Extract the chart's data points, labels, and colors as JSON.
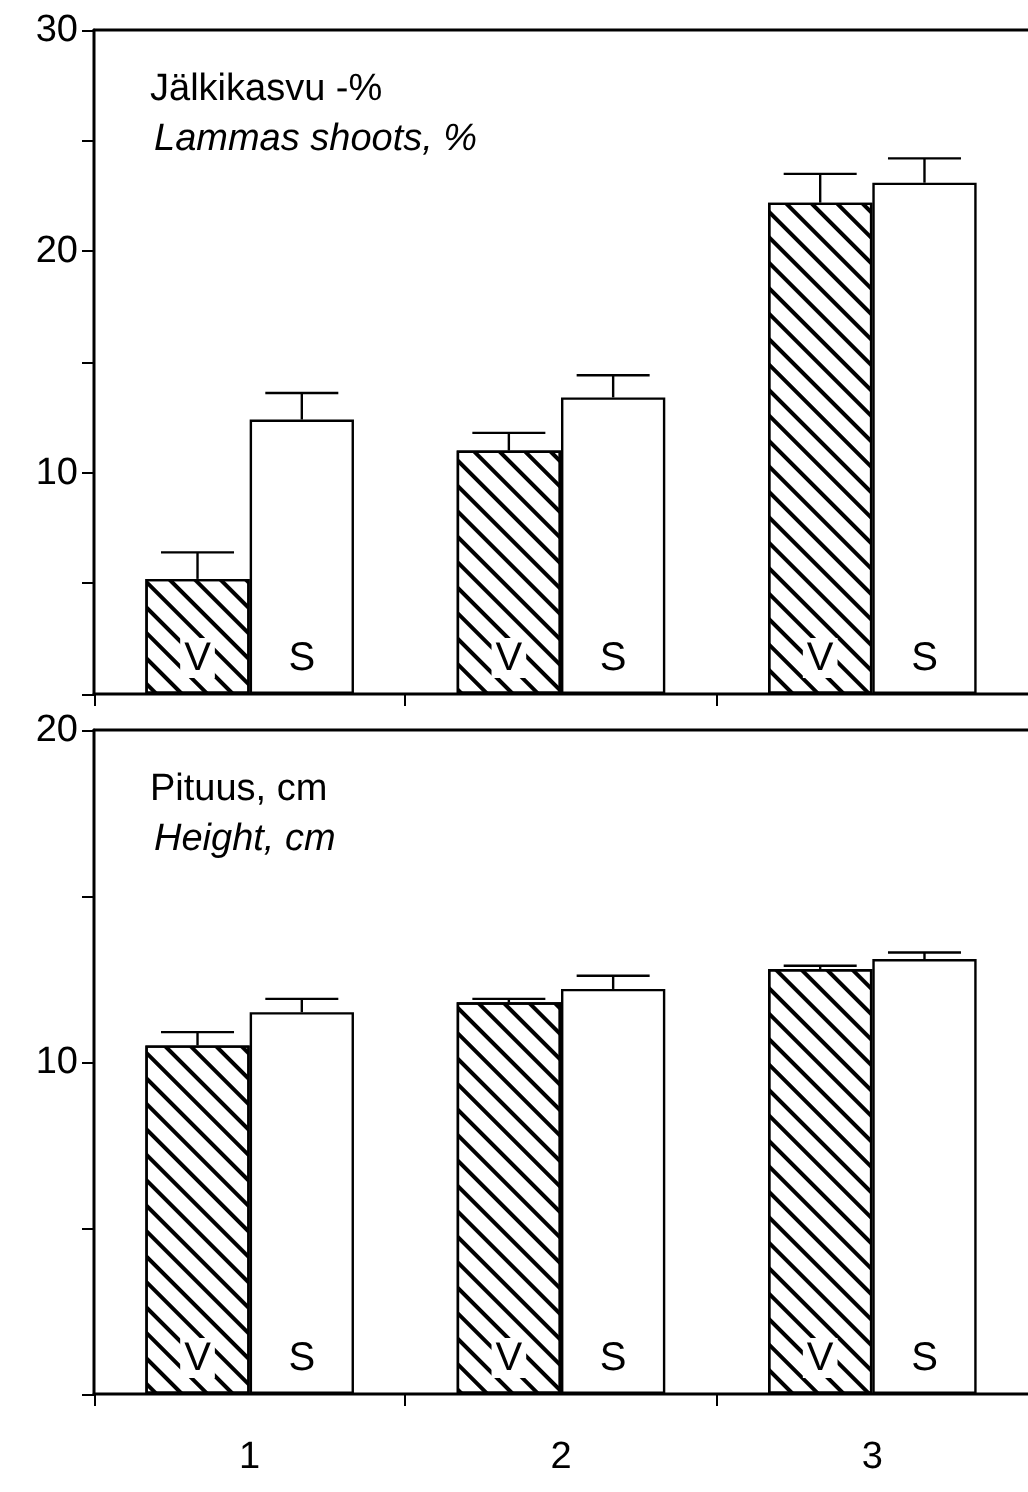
{
  "chart_data": [
    {
      "type": "bar",
      "title": "Jälkikasvu -%",
      "subtitle": "Lammas shoots, %",
      "categories": [
        "1",
        "2",
        "3"
      ],
      "series": [
        {
          "name": "V",
          "color": "#000000",
          "values": [
            5.2,
            11.0,
            22.2
          ],
          "errors": [
            [
              5.2,
              6.4
            ],
            [
              11.0,
              11.8
            ],
            [
              22.2,
              23.5
            ]
          ]
        },
        {
          "name": "S",
          "color": "#ffffff",
          "values": [
            12.4,
            13.4,
            23.1
          ],
          "errors": [
            [
              12.4,
              13.6
            ],
            [
              13.4,
              14.4
            ],
            [
              23.1,
              24.2
            ]
          ]
        }
      ],
      "ylim": [
        0,
        30
      ],
      "yticks": [
        {
          "value": 0,
          "label": null
        },
        {
          "value": 5,
          "label": null
        },
        10,
        {
          "value": 15,
          "label": null
        },
        20,
        {
          "value": 25,
          "label": null
        },
        30
      ],
      "tick_labels": "y",
      "grid": false,
      "legend": false
    },
    {
      "type": "bar",
      "title": "Pituus, cm",
      "subtitle": "Height, cm",
      "categories": [
        "1",
        "2",
        "3"
      ],
      "series": [
        {
          "name": "V",
          "color": "#000000",
          "values": [
            10.5,
            11.8,
            12.8
          ],
          "errors": [
            [
              10.5,
              10.9
            ],
            [
              11.8,
              11.9
            ],
            [
              12.8,
              12.9
            ]
          ]
        },
        {
          "name": "S",
          "color": "#ffffff",
          "values": [
            11.5,
            12.2,
            13.1
          ],
          "errors": [
            [
              11.5,
              11.9
            ],
            [
              12.2,
              12.6
            ],
            [
              13.1,
              13.3
            ]
          ]
        }
      ],
      "ylim": [
        0,
        20
      ],
      "yticks": [
        {
          "value": 0,
          "label": null
        },
        {
          "value": 5,
          "label": null
        },
        10,
        {
          "value": 15,
          "label": null
        },
        20
      ],
      "grid": false,
      "legend": false
    }
  ]
}
